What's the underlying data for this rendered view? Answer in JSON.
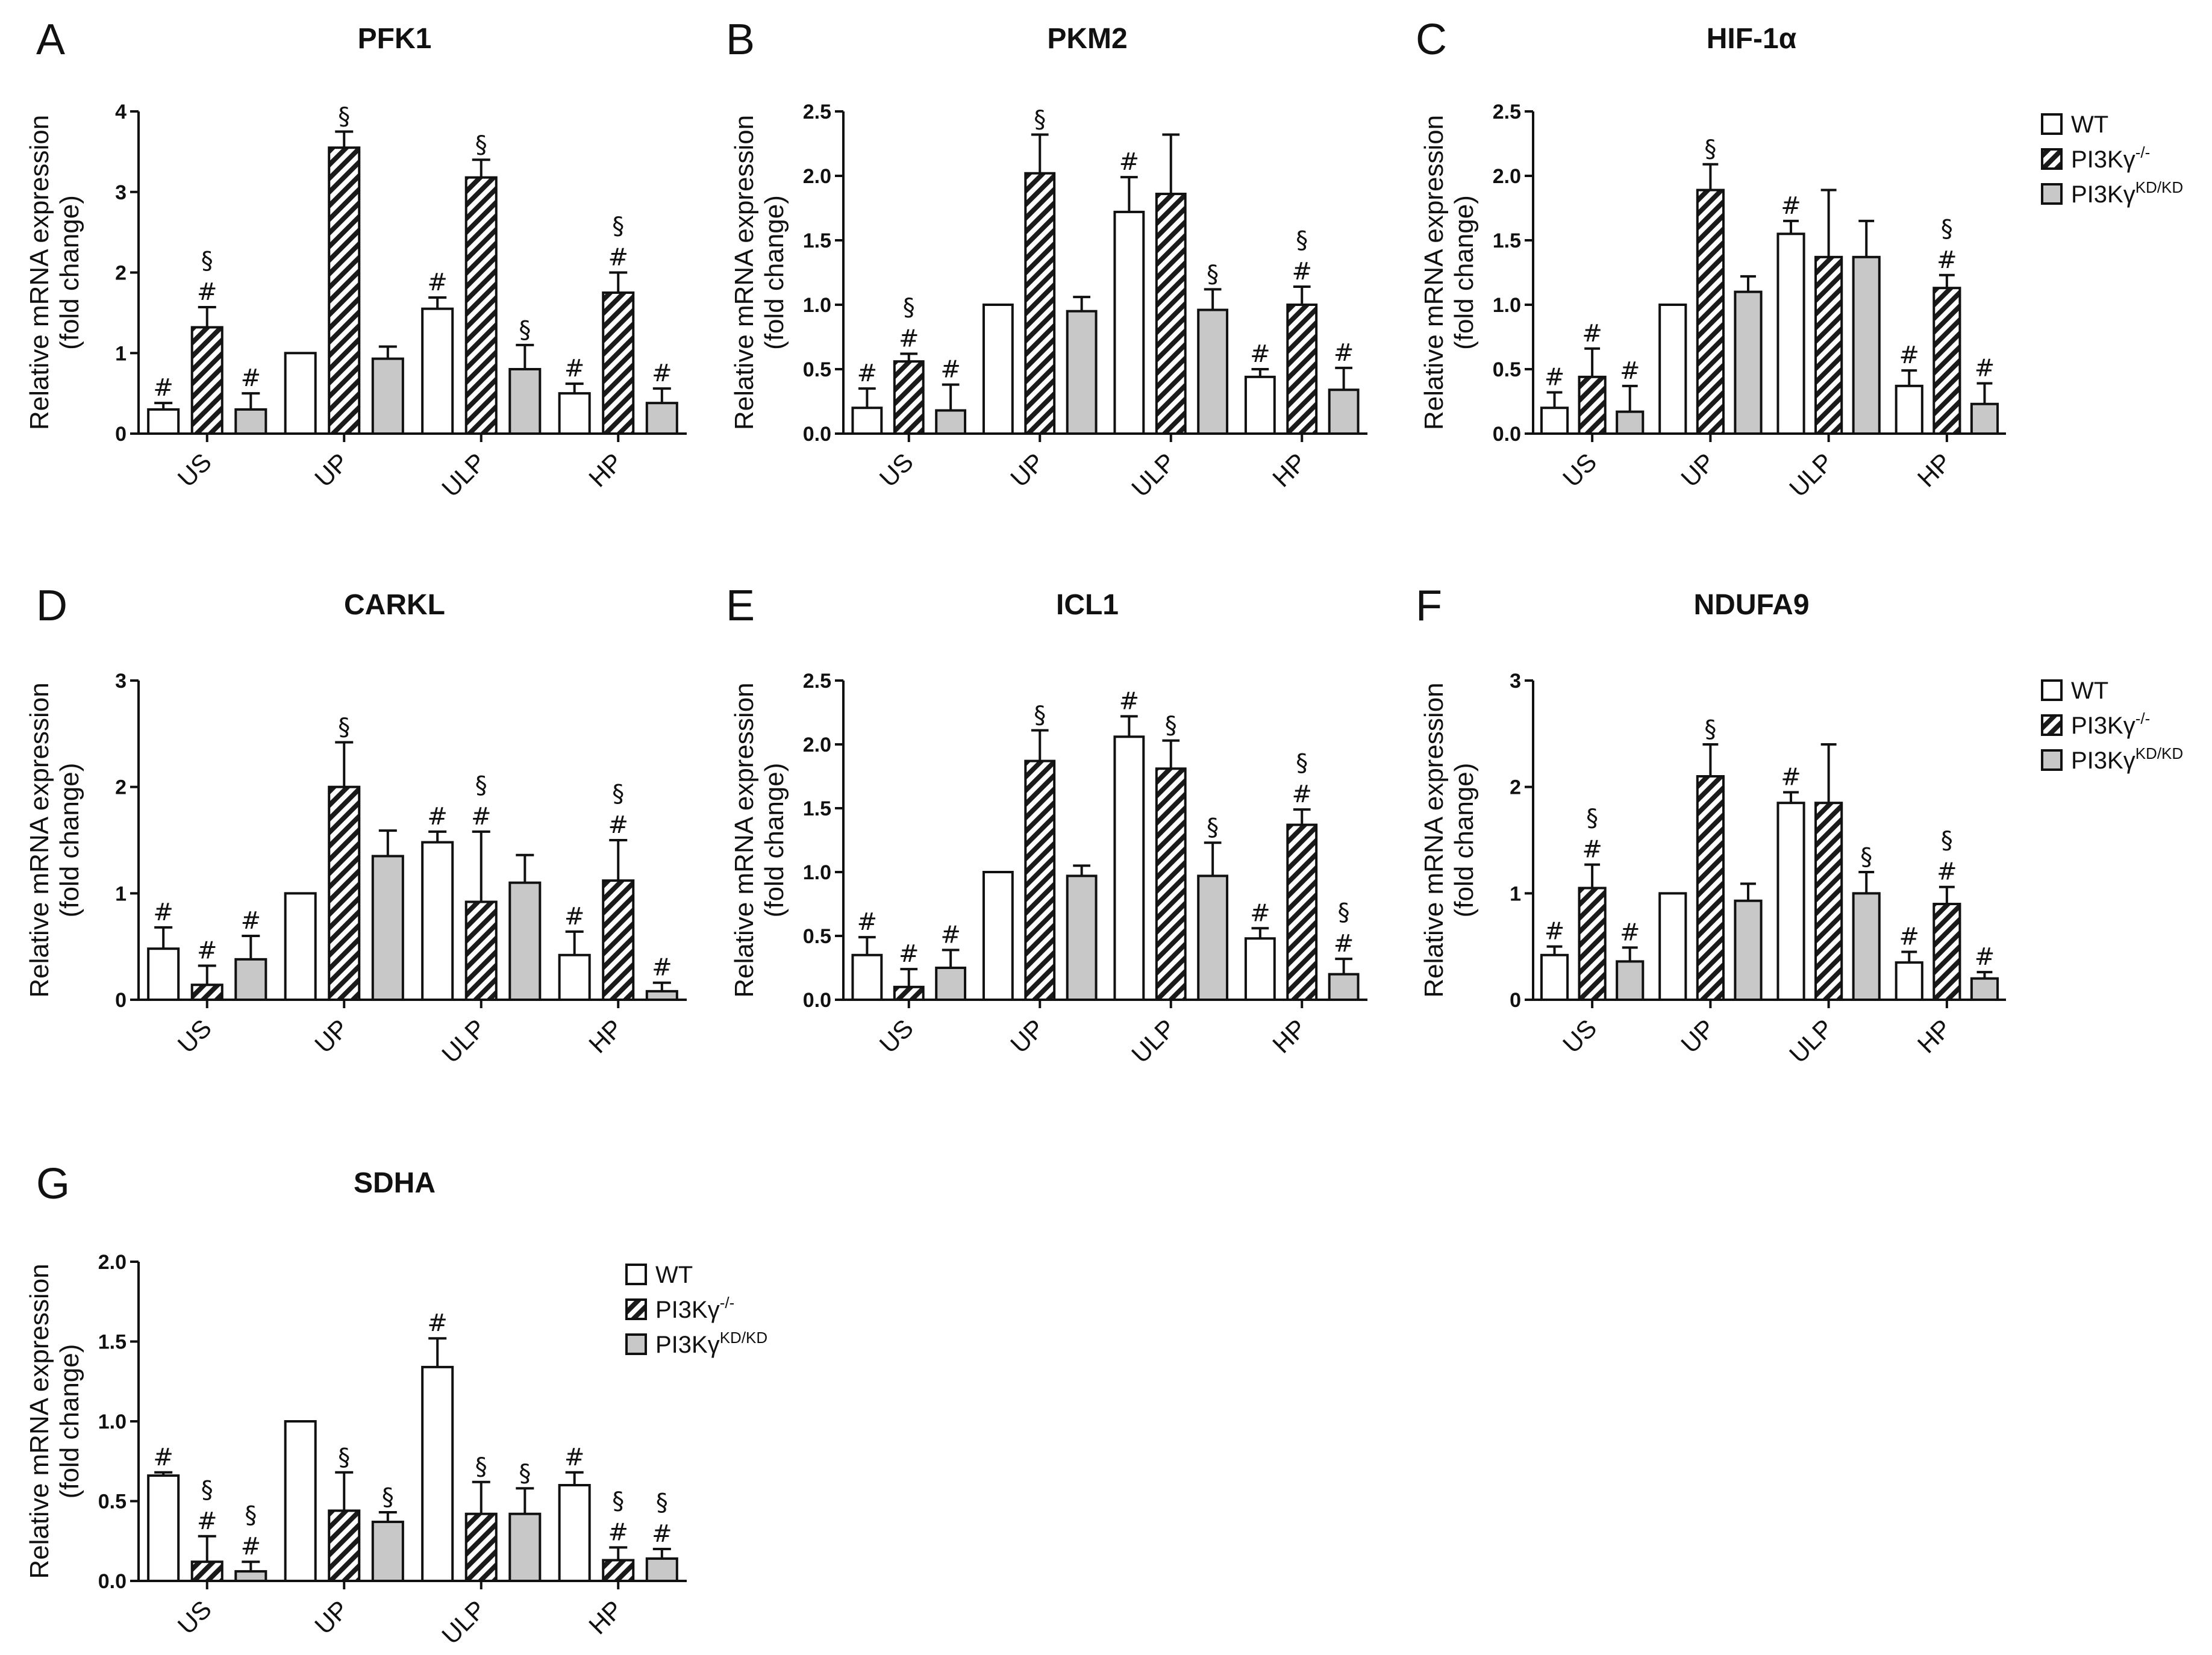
{
  "legend": {
    "items": [
      {
        "key": "wt",
        "label": "WT",
        "sup": ""
      },
      {
        "key": "ko",
        "label": "PI3Kγ",
        "sup": "-/-"
      },
      {
        "key": "kd",
        "label": "PI3Kγ",
        "sup": "KD/KD"
      }
    ]
  },
  "colors": {
    "wt": "#ffffff",
    "ko_hatch": "#1a1a1a",
    "kd": "#c8c8c8",
    "stroke": "#111111"
  },
  "chart_data": [
    {
      "panel": "A",
      "type": "bar",
      "title": "PFK1",
      "ylabel": [
        "Relative mRNA expression",
        "(fold change)"
      ],
      "ylim": [
        0,
        4
      ],
      "yticks": [
        0,
        1,
        2,
        3,
        4
      ],
      "ytick_labels": [
        "0",
        "1",
        "2",
        "3",
        "4"
      ],
      "categories": [
        "US",
        "UP",
        "ULP",
        "HP"
      ],
      "legend": false,
      "series": [
        {
          "name": "WT",
          "values": [
            0.3,
            1.0,
            1.55,
            0.5
          ],
          "errors": [
            0.08,
            0,
            0.14,
            0.12
          ],
          "annotations": [
            [
              "#"
            ],
            [],
            [
              "#"
            ],
            [
              "#"
            ]
          ]
        },
        {
          "name": "PI3Kγ-/-",
          "values": [
            1.32,
            3.55,
            3.18,
            1.75
          ],
          "errors": [
            0.25,
            0.2,
            0.22,
            0.25
          ],
          "annotations": [
            [
              "#",
              "§"
            ],
            [
              "§"
            ],
            [
              "§"
            ],
            [
              "#",
              "§"
            ]
          ]
        },
        {
          "name": "PI3KγKD/KD",
          "values": [
            0.3,
            0.93,
            0.8,
            0.38
          ],
          "errors": [
            0.2,
            0.15,
            0.3,
            0.18
          ],
          "annotations": [
            [
              "#"
            ],
            [],
            [
              "§"
            ],
            [
              "#"
            ]
          ]
        }
      ]
    },
    {
      "panel": "B",
      "type": "bar",
      "title": "PKM2",
      "ylabel": [
        "Relative mRNA expression",
        "(fold change)"
      ],
      "ylim": [
        0,
        2.5
      ],
      "yticks": [
        0,
        0.5,
        1,
        1.5,
        2,
        2.5
      ],
      "ytick_labels": [
        "0.0",
        "0.5",
        "1.0",
        "1.5",
        "2.0",
        "2.5"
      ],
      "categories": [
        "US",
        "UP",
        "ULP",
        "HP"
      ],
      "legend": false,
      "series": [
        {
          "name": "WT",
          "values": [
            0.2,
            1.0,
            1.72,
            0.44
          ],
          "errors": [
            0.15,
            0,
            0.27,
            0.06
          ],
          "annotations": [
            [
              "#"
            ],
            [],
            [
              "#"
            ],
            [
              "#"
            ]
          ]
        },
        {
          "name": "PI3Kγ-/-",
          "values": [
            0.56,
            2.02,
            1.86,
            1.0
          ],
          "errors": [
            0.06,
            0.3,
            0.46,
            0.14
          ],
          "annotations": [
            [
              "#",
              "§"
            ],
            [
              "§"
            ],
            [],
            [
              "#",
              "§"
            ]
          ]
        },
        {
          "name": "PI3KγKD/KD",
          "values": [
            0.18,
            0.95,
            0.96,
            0.34
          ],
          "errors": [
            0.2,
            0.11,
            0.16,
            0.17
          ],
          "annotations": [
            [
              "#"
            ],
            [],
            [
              "§"
            ],
            [
              "#"
            ]
          ]
        }
      ]
    },
    {
      "panel": "C",
      "type": "bar",
      "title": "HIF-1α",
      "ylabel": [
        "Relative mRNA expression",
        "(fold change)"
      ],
      "ylim": [
        0,
        2.5
      ],
      "yticks": [
        0,
        0.5,
        1,
        1.5,
        2,
        2.5
      ],
      "ytick_labels": [
        "0.0",
        "0.5",
        "1.0",
        "1.5",
        "2.0",
        "2.5"
      ],
      "categories": [
        "US",
        "UP",
        "ULP",
        "HP"
      ],
      "legend": true,
      "series": [
        {
          "name": "WT",
          "values": [
            0.2,
            1.0,
            1.55,
            0.37
          ],
          "errors": [
            0.12,
            0,
            0.1,
            0.12
          ],
          "annotations": [
            [
              "#"
            ],
            [],
            [
              "#"
            ],
            [
              "#"
            ]
          ]
        },
        {
          "name": "PI3Kγ-/-",
          "values": [
            0.44,
            1.89,
            1.37,
            1.13
          ],
          "errors": [
            0.22,
            0.2,
            0.52,
            0.1
          ],
          "annotations": [
            [
              "#"
            ],
            [
              "§"
            ],
            [],
            [
              "#",
              "§"
            ]
          ]
        },
        {
          "name": "PI3KγKD/KD",
          "values": [
            0.17,
            1.1,
            1.37,
            0.23
          ],
          "errors": [
            0.2,
            0.12,
            0.28,
            0.16
          ],
          "annotations": [
            [
              "#"
            ],
            [],
            [],
            [
              "#"
            ]
          ]
        }
      ]
    },
    {
      "panel": "D",
      "type": "bar",
      "title": "CARKL",
      "ylabel": [
        "Relative mRNA expression",
        "(fold change)"
      ],
      "ylim": [
        0,
        3
      ],
      "yticks": [
        0,
        1,
        2,
        3
      ],
      "ytick_labels": [
        "0",
        "1",
        "2",
        "3"
      ],
      "categories": [
        "US",
        "UP",
        "ULP",
        "HP"
      ],
      "legend": false,
      "series": [
        {
          "name": "WT",
          "values": [
            0.48,
            1.0,
            1.48,
            0.42
          ],
          "errors": [
            0.2,
            0,
            0.1,
            0.22
          ],
          "annotations": [
            [
              "#"
            ],
            [],
            [
              "#"
            ],
            [
              "#"
            ]
          ]
        },
        {
          "name": "PI3Kγ-/-",
          "values": [
            0.14,
            2.0,
            0.92,
            1.12
          ],
          "errors": [
            0.18,
            0.42,
            0.66,
            0.38
          ],
          "annotations": [
            [
              "#"
            ],
            [
              "§"
            ],
            [
              "#",
              "§"
            ],
            [
              "#",
              "§"
            ]
          ]
        },
        {
          "name": "PI3KγKD/KD",
          "values": [
            0.38,
            1.35,
            1.1,
            0.08
          ],
          "errors": [
            0.22,
            0.24,
            0.26,
            0.08
          ],
          "annotations": [
            [
              "#"
            ],
            [],
            [],
            [
              "#"
            ]
          ]
        }
      ]
    },
    {
      "panel": "E",
      "type": "bar",
      "title": "ICL1",
      "ylabel": [
        "Relative mRNA expression",
        "(fold change)"
      ],
      "ylim": [
        0,
        2.5
      ],
      "yticks": [
        0,
        0.5,
        1,
        1.5,
        2,
        2.5
      ],
      "ytick_labels": [
        "0.0",
        "0.5",
        "1.0",
        "1.5",
        "2.0",
        "2.5"
      ],
      "categories": [
        "US",
        "UP",
        "ULP",
        "HP"
      ],
      "legend": false,
      "series": [
        {
          "name": "WT",
          "values": [
            0.35,
            1.0,
            2.06,
            0.48
          ],
          "errors": [
            0.14,
            0,
            0.16,
            0.08
          ],
          "annotations": [
            [
              "#"
            ],
            [],
            [
              "#"
            ],
            [
              "#"
            ]
          ]
        },
        {
          "name": "PI3Kγ-/-",
          "values": [
            0.1,
            1.87,
            1.81,
            1.37
          ],
          "errors": [
            0.14,
            0.24,
            0.22,
            0.12
          ],
          "annotations": [
            [
              "#"
            ],
            [
              "§"
            ],
            [
              "§"
            ],
            [
              "#",
              "§"
            ]
          ]
        },
        {
          "name": "PI3KγKD/KD",
          "values": [
            0.25,
            0.97,
            0.97,
            0.2
          ],
          "errors": [
            0.14,
            0.08,
            0.26,
            0.12
          ],
          "annotations": [
            [
              "#"
            ],
            [],
            [
              "§"
            ],
            [
              "#",
              "§"
            ]
          ]
        }
      ]
    },
    {
      "panel": "F",
      "type": "bar",
      "title": "NDUFA9",
      "ylabel": [
        "Relative mRNA expression",
        "(fold change)"
      ],
      "ylim": [
        0,
        3
      ],
      "yticks": [
        0,
        1,
        2,
        3
      ],
      "ytick_labels": [
        "0",
        "1",
        "2",
        "3"
      ],
      "categories": [
        "US",
        "UP",
        "ULP",
        "HP"
      ],
      "legend": true,
      "series": [
        {
          "name": "WT",
          "values": [
            0.42,
            1.0,
            1.85,
            0.35
          ],
          "errors": [
            0.08,
            0,
            0.1,
            0.1
          ],
          "annotations": [
            [
              "#"
            ],
            [],
            [
              "#"
            ],
            [
              "#"
            ]
          ]
        },
        {
          "name": "PI3Kγ-/-",
          "values": [
            1.05,
            2.1,
            1.85,
            0.9
          ],
          "errors": [
            0.22,
            0.3,
            0.55,
            0.16
          ],
          "annotations": [
            [
              "#",
              "§"
            ],
            [
              "§"
            ],
            [],
            [
              "#",
              "§"
            ]
          ]
        },
        {
          "name": "PI3KγKD/KD",
          "values": [
            0.36,
            0.93,
            1.0,
            0.2
          ],
          "errors": [
            0.13,
            0.16,
            0.2,
            0.06
          ],
          "annotations": [
            [
              "#"
            ],
            [],
            [
              "§"
            ],
            [
              "#"
            ]
          ]
        }
      ]
    },
    {
      "panel": "G",
      "type": "bar",
      "title": "SDHA",
      "ylabel": [
        "Relative mRNA expression",
        "(fold change)"
      ],
      "ylim": [
        0,
        2
      ],
      "yticks": [
        0,
        0.5,
        1,
        1.5,
        2
      ],
      "ytick_labels": [
        "0.0",
        "0.5",
        "1.0",
        "1.5",
        "2.0"
      ],
      "categories": [
        "US",
        "UP",
        "ULP",
        "HP"
      ],
      "legend": true,
      "series": [
        {
          "name": "WT",
          "values": [
            0.66,
            1.0,
            1.34,
            0.6
          ],
          "errors": [
            0.02,
            0,
            0.18,
            0.08
          ],
          "annotations": [
            [
              "#"
            ],
            [],
            [
              "#"
            ],
            [
              "#"
            ]
          ]
        },
        {
          "name": "PI3Kγ-/-",
          "values": [
            0.12,
            0.44,
            0.42,
            0.13
          ],
          "errors": [
            0.16,
            0.24,
            0.2,
            0.08
          ],
          "annotations": [
            [
              "#",
              "§"
            ],
            [
              "§"
            ],
            [
              "§"
            ],
            [
              "#",
              "§"
            ]
          ]
        },
        {
          "name": "PI3KγKD/KD",
          "values": [
            0.06,
            0.37,
            0.42,
            0.14
          ],
          "errors": [
            0.06,
            0.06,
            0.16,
            0.06
          ],
          "annotations": [
            [
              "#",
              "§"
            ],
            [
              "§"
            ],
            [
              "§"
            ],
            [
              "#",
              "§"
            ]
          ]
        }
      ]
    }
  ]
}
